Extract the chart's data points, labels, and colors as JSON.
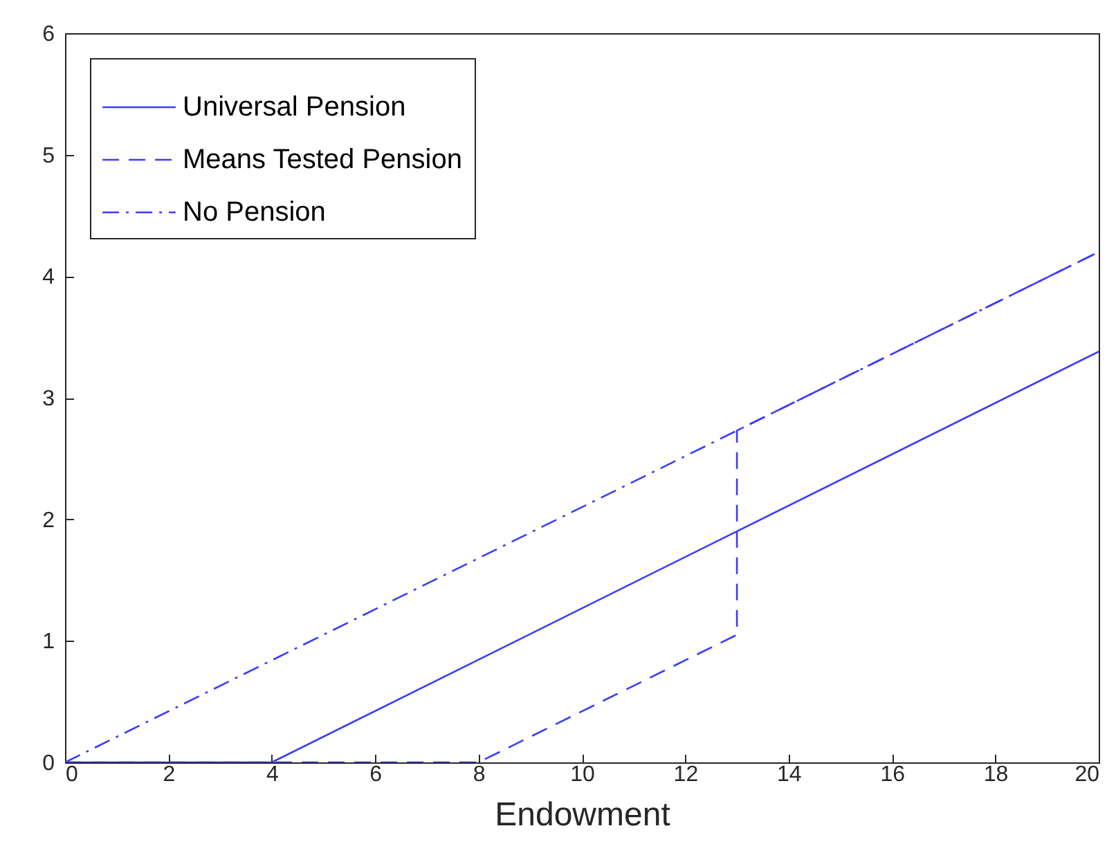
{
  "chart_data": {
    "type": "line",
    "xlabel": "Endowment",
    "xlim": [
      0,
      20
    ],
    "ylim": [
      0,
      6
    ],
    "xticks": [
      0,
      2,
      4,
      6,
      8,
      10,
      12,
      14,
      16,
      18,
      20
    ],
    "yticks": [
      0,
      1,
      2,
      3,
      4,
      5,
      6
    ],
    "grid": false,
    "legend": "top left",
    "marker": "none",
    "series": [
      {
        "name": "Universal Pension",
        "color": "#3b3bff",
        "line_style": "solid",
        "x": [
          0,
          4,
          20
        ],
        "values": [
          0,
          0,
          3.38
        ]
      },
      {
        "name": "Means Tested Pension",
        "color": "#3b3bff",
        "line_style": "dashed",
        "x": [
          0,
          8,
          13,
          13,
          20
        ],
        "values": [
          0,
          0,
          1.05,
          2.73,
          4.2
        ]
      },
      {
        "name": "No Pension",
        "color": "#3b3bff",
        "line_style": "dashdot",
        "x": [
          0,
          20
        ],
        "values": [
          0,
          4.2
        ]
      }
    ]
  }
}
